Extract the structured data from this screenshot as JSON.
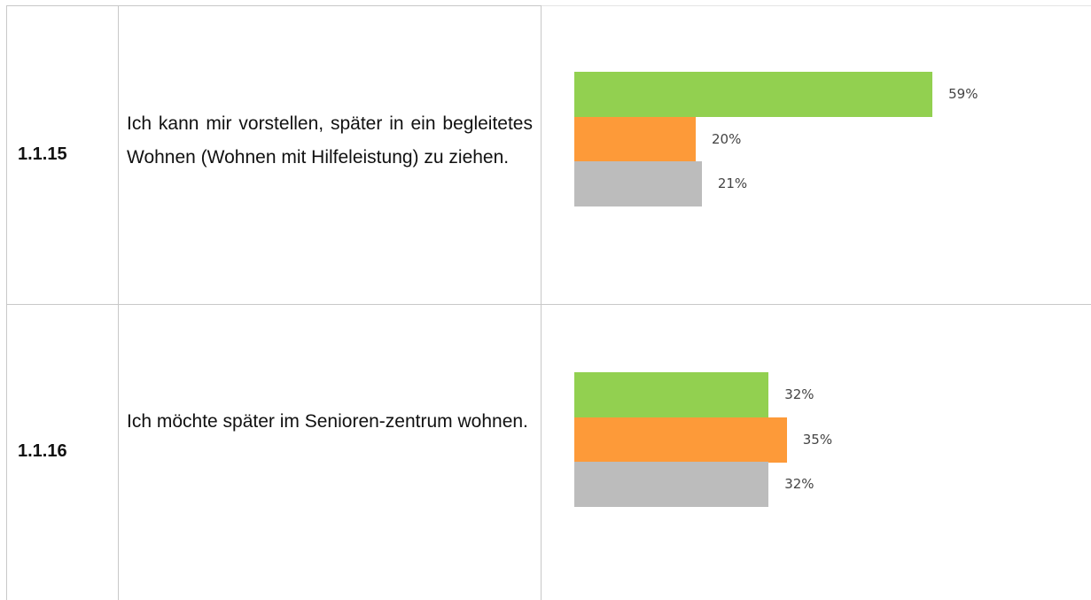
{
  "table": {
    "rows": [
      {
        "id": "1.1.15",
        "text": "Ich kann mir vorstellen, später in ein begleitetes Wohnen (Wohnen mit Hilfeleistung) zu ziehen.",
        "chart_data": {
          "type": "bar",
          "values": [
            59,
            20,
            21
          ],
          "value_labels": [
            "59%",
            "20%",
            "21%"
          ],
          "colors": [
            "#92d050",
            "#fd9a39",
            "#bcbcbc"
          ]
        }
      },
      {
        "id": "1.1.16",
        "text": "Ich möchte später im Senioren-zentrum wohnen.",
        "chart_data": {
          "type": "bar",
          "values": [
            32,
            35,
            32
          ],
          "value_labels": [
            "32%",
            "35%",
            "32%"
          ],
          "colors": [
            "#92d050",
            "#fd9a39",
            "#bcbcbc"
          ]
        }
      }
    ]
  }
}
